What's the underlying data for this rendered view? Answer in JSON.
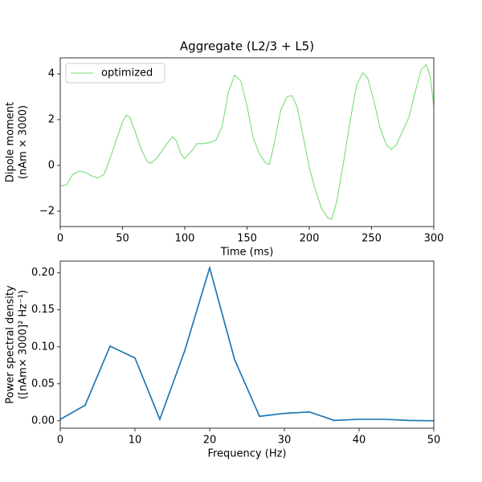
{
  "chart_data": [
    {
      "type": "line",
      "title": "Aggregate (L2/3 + L5)",
      "xlabel": "Time (ms)",
      "ylabel": [
        "Dipole moment",
        "(nAm × 3000)"
      ],
      "x": [
        0,
        5,
        10,
        15,
        20,
        25,
        30,
        35,
        40,
        45,
        50,
        53,
        56,
        60,
        65,
        70,
        73,
        78,
        85,
        90,
        93,
        97,
        100,
        105,
        110,
        115,
        120,
        125,
        130,
        135,
        140,
        145,
        150,
        155,
        160,
        165,
        168,
        172,
        177,
        182,
        186,
        190,
        195,
        200,
        205,
        210,
        215,
        218,
        222,
        228,
        233,
        238,
        243,
        247,
        252,
        257,
        262,
        266,
        270,
        275,
        280,
        285,
        290,
        294,
        297,
        300
      ],
      "series": [
        {
          "name": "optimized",
          "color": "#77dd77",
          "values": [
            -0.9,
            -0.85,
            -0.4,
            -0.25,
            -0.3,
            -0.45,
            -0.55,
            -0.4,
            0.3,
            1.1,
            1.9,
            2.2,
            2.1,
            1.5,
            0.7,
            0.15,
            0.1,
            0.35,
            0.9,
            1.25,
            1.1,
            0.5,
            0.3,
            0.6,
            0.95,
            0.95,
            1.0,
            1.1,
            1.7,
            3.2,
            3.95,
            3.7,
            2.6,
            1.2,
            0.5,
            0.1,
            0.05,
            1.0,
            2.4,
            3.0,
            3.05,
            2.6,
            1.3,
            -0.1,
            -1.1,
            -1.9,
            -2.3,
            -2.35,
            -1.6,
            0.3,
            2.0,
            3.5,
            4.05,
            3.8,
            2.8,
            1.6,
            0.9,
            0.7,
            0.9,
            1.5,
            2.1,
            3.2,
            4.2,
            4.4,
            3.9,
            2.6
          ]
        }
      ],
      "xlim": [
        0,
        300
      ],
      "xticks": [
        0,
        50,
        100,
        150,
        200,
        250,
        300
      ],
      "ylim": [
        -2.67,
        4.7
      ],
      "yticks": [
        {
          "value": -2,
          "label": "−2"
        },
        0,
        2,
        4
      ],
      "legend": "upper left"
    },
    {
      "type": "line",
      "xlabel": "Frequency (Hz)",
      "ylabel": [
        "Power spectral density",
        "([nAm× 3000]² Hz⁻¹)"
      ],
      "x": [
        0,
        3.33,
        6.67,
        10,
        13.33,
        16.67,
        20,
        23.33,
        26.67,
        30,
        33.33,
        36.67,
        40,
        43.33,
        46.67,
        50
      ],
      "series": [
        {
          "color": "#1f77b4",
          "values": [
            0.002,
            0.021,
            0.101,
            0.085,
            0.002,
            0.095,
            0.207,
            0.083,
            0.006,
            0.01,
            0.012,
            0.0005,
            0.002,
            0.002,
            0.0005,
            0.0
          ]
        }
      ],
      "xlim": [
        0,
        50
      ],
      "xticks": [
        0,
        10,
        20,
        30,
        40,
        50
      ],
      "ylim": [
        -0.01,
        0.216
      ],
      "yticks": [
        {
          "value": 0,
          "label": "0.00"
        },
        {
          "value": 0.05,
          "label": "0.05"
        },
        {
          "value": 0.1,
          "label": "0.10"
        },
        {
          "value": 0.15,
          "label": "0.15"
        },
        {
          "value": 0.2,
          "label": "0.20"
        }
      ]
    }
  ]
}
